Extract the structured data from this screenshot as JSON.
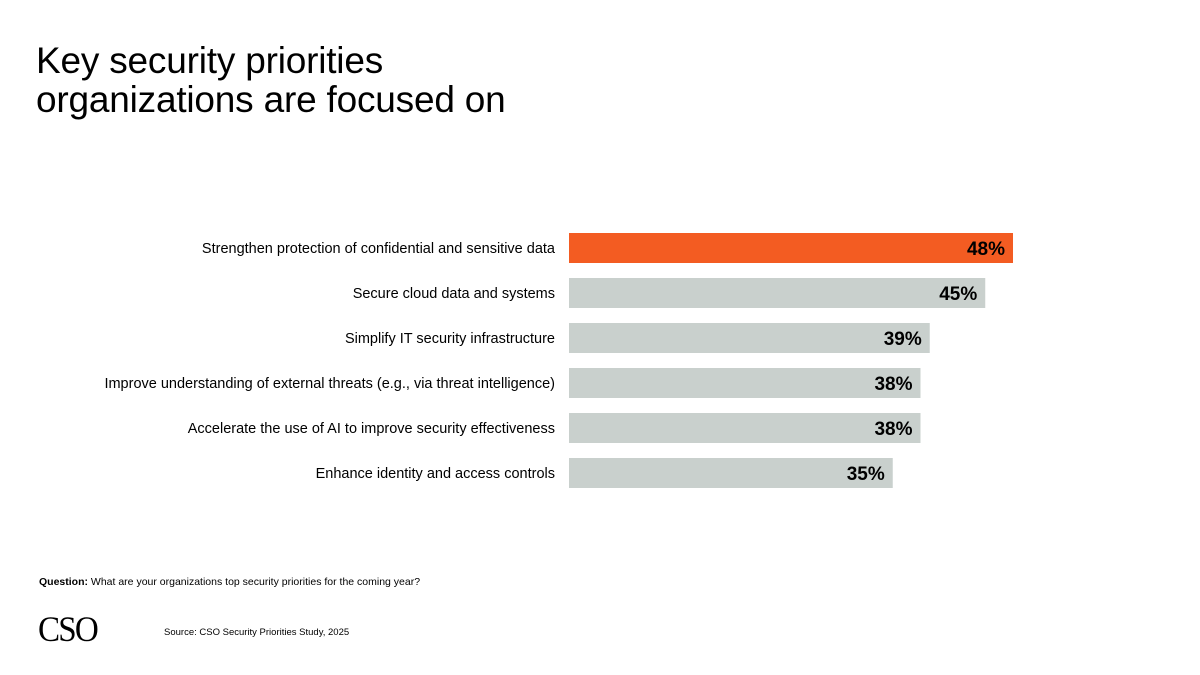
{
  "header": {
    "title_line1": "Key security priorities",
    "title_line2": "organizations are focused on"
  },
  "chart_data": {
    "type": "bar",
    "orientation": "horizontal",
    "title": "Key security priorities organizations are focused on",
    "xlabel": "",
    "ylabel": "",
    "xlim": [
      0,
      100
    ],
    "grid": false,
    "legend": "none",
    "categories": [
      "Strengthen protection of confidential and sensitive data",
      "Secure cloud data and systems",
      "Simplify IT security infrastructure",
      "Improve understanding of external threats (e.g., via threat intelligence)",
      "Accelerate the use of AI to improve security effectiveness",
      "Enhance identity and access controls"
    ],
    "values": [
      48,
      45,
      39,
      38,
      38,
      35
    ],
    "value_labels": [
      "48%",
      "45%",
      "39%",
      "38%",
      "38%",
      "35%"
    ],
    "highlight_index": 0,
    "colors": {
      "highlight": "#f35c22",
      "default": "#c9d0cd",
      "label": "#000000"
    }
  },
  "footer": {
    "question_label": "Question:",
    "question_text": "What are your organizations top security priorities for the coming year?",
    "logo": "CSO",
    "source": "Source: CSO Security Priorities Study, 2025"
  }
}
